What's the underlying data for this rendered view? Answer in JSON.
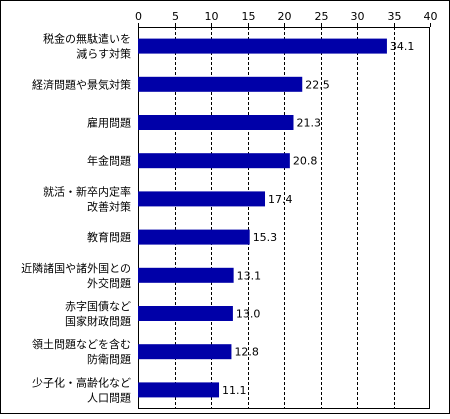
{
  "chart_data": {
    "type": "bar",
    "orientation": "horizontal",
    "categories": [
      [
        "税金の無駄遣いを",
        "減らす対策"
      ],
      [
        "経済問題や景気対策"
      ],
      [
        "雇用問題"
      ],
      [
        "年金問題"
      ],
      [
        "就活・新卒内定率",
        "改善対策"
      ],
      [
        "教育問題"
      ],
      [
        "近隣諸国や諸外国との",
        "外交問題"
      ],
      [
        "赤字国債など",
        "国家財政問題"
      ],
      [
        "領土問題などを含む",
        "防衛問題"
      ],
      [
        "少子化・高齢化など",
        "人口問題"
      ]
    ],
    "values": [
      34.1,
      22.5,
      21.3,
      20.8,
      17.4,
      15.3,
      13.1,
      13.0,
      12.8,
      11.1
    ],
    "value_labels": [
      "34.1",
      "22.5",
      "21.3",
      "20.8",
      "17.4",
      "15.3",
      "13.1",
      "13.0",
      "12.8",
      "11.1"
    ],
    "xlim": [
      0,
      40
    ],
    "ticks": [
      "0",
      "5",
      "10",
      "15",
      "20",
      "25",
      "30",
      "35",
      "40"
    ],
    "tick_values": [
      0,
      5,
      10,
      15,
      20,
      25,
      30,
      35,
      40
    ],
    "grid": true,
    "title": "",
    "xlabel": "",
    "ylabel": "",
    "colors": {
      "bar": "#0000a8",
      "grid": "#000000",
      "frame": "#000000"
    }
  }
}
